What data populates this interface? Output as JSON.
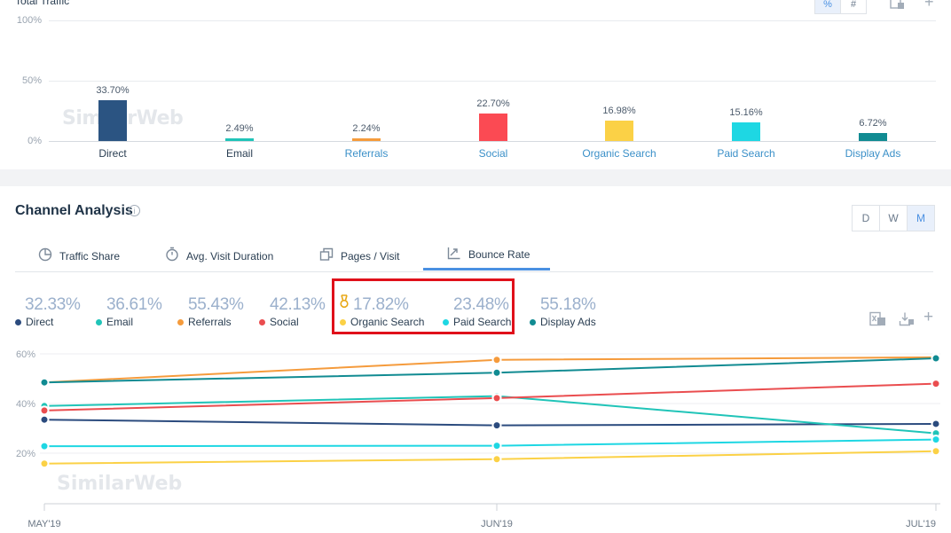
{
  "top_panel": {
    "title": "Total Traffic",
    "toggle": {
      "percent_label": "%",
      "number_label": "#",
      "active": "%"
    },
    "icons": [
      "excel-export-icon",
      "add-icon"
    ],
    "y_axis_labels": [
      "100%",
      "50%",
      "0%"
    ],
    "watermark": "SimilarWeb"
  },
  "channel_analysis": {
    "title": "Channel Analysis",
    "info_icon": "i",
    "periods": [
      "D",
      "W",
      "M"
    ],
    "active_period": "M",
    "tabs": [
      {
        "label": "Traffic Share",
        "icon": "pie-chart-icon"
      },
      {
        "label": "Avg. Visit Duration",
        "icon": "stopwatch-icon"
      },
      {
        "label": "Pages / Visit",
        "icon": "pages-icon"
      },
      {
        "label": "Bounce Rate",
        "icon": "bounce-icon"
      }
    ],
    "active_tab": "Bounce Rate",
    "legend": [
      {
        "value": "32.33%",
        "name": "Direct",
        "color": "#2b4b7e"
      },
      {
        "value": "36.61%",
        "name": "Email",
        "color": "#20c4b8"
      },
      {
        "value": "55.43%",
        "name": "Referrals",
        "color": "#f59b3c"
      },
      {
        "value": "42.13%",
        "name": "Social",
        "color": "#ea4d4f"
      },
      {
        "value": "17.82%",
        "name": "Organic Search",
        "color": "#fbd146",
        "badge": "award-icon"
      },
      {
        "value": "23.48%",
        "name": "Paid Search",
        "color": "#1ed7e3"
      },
      {
        "value": "55.18%",
        "name": "Display Ads",
        "color": "#118b92"
      }
    ],
    "chart_icons": [
      "excel-export-icon",
      "download-icon",
      "add-icon"
    ],
    "watermark": "SimilarWeb"
  },
  "chart_data": [
    {
      "type": "bar",
      "title": "Total Traffic",
      "categories": [
        "Direct",
        "Email",
        "Referrals",
        "Social",
        "Organic Search",
        "Paid Search",
        "Display Ads"
      ],
      "values": [
        33.7,
        2.49,
        2.24,
        22.7,
        16.98,
        15.16,
        6.72
      ],
      "labels": [
        "33.70%",
        "2.49%",
        "2.24%",
        "22.70%",
        "16.98%",
        "15.16%",
        "6.72%"
      ],
      "colors": [
        "#2b5482",
        "#20c4b8",
        "#f59b3c",
        "#fb4a53",
        "#fbd146",
        "#1ed7e3",
        "#118b92"
      ],
      "category_colors": [
        "#2a3e52",
        "#2a3e52",
        "#3b90c8",
        "#3b90c8",
        "#3b90c8",
        "#3b90c8",
        "#3b90c8"
      ],
      "ylim": [
        0,
        100
      ],
      "grid": true
    },
    {
      "type": "line",
      "title": "Bounce Rate",
      "x": [
        "MAY'19",
        "JUN'19",
        "JUL'19"
      ],
      "y_ticks": [
        "20%",
        "40%",
        "60%"
      ],
      "ylim": [
        0,
        66
      ],
      "series": [
        {
          "name": "Direct",
          "color": "#2b4b7e",
          "values": [
            33.5,
            31.2,
            31.8
          ]
        },
        {
          "name": "Email",
          "color": "#20c4b8",
          "values": [
            39.0,
            43.0,
            28.0
          ]
        },
        {
          "name": "Referrals",
          "color": "#f59b3c",
          "values": [
            48.5,
            57.6,
            58.6
          ]
        },
        {
          "name": "Social",
          "color": "#ea4d4f",
          "values": [
            37.2,
            42.2,
            48.0
          ]
        },
        {
          "name": "Organic Search",
          "color": "#fbd146",
          "values": [
            15.8,
            17.6,
            20.8
          ]
        },
        {
          "name": "Paid Search",
          "color": "#1ed7e3",
          "values": [
            22.8,
            23.0,
            25.5
          ]
        },
        {
          "name": "Display Ads",
          "color": "#118b92",
          "values": [
            48.5,
            52.4,
            58.2
          ]
        }
      ],
      "grid": true
    }
  ]
}
